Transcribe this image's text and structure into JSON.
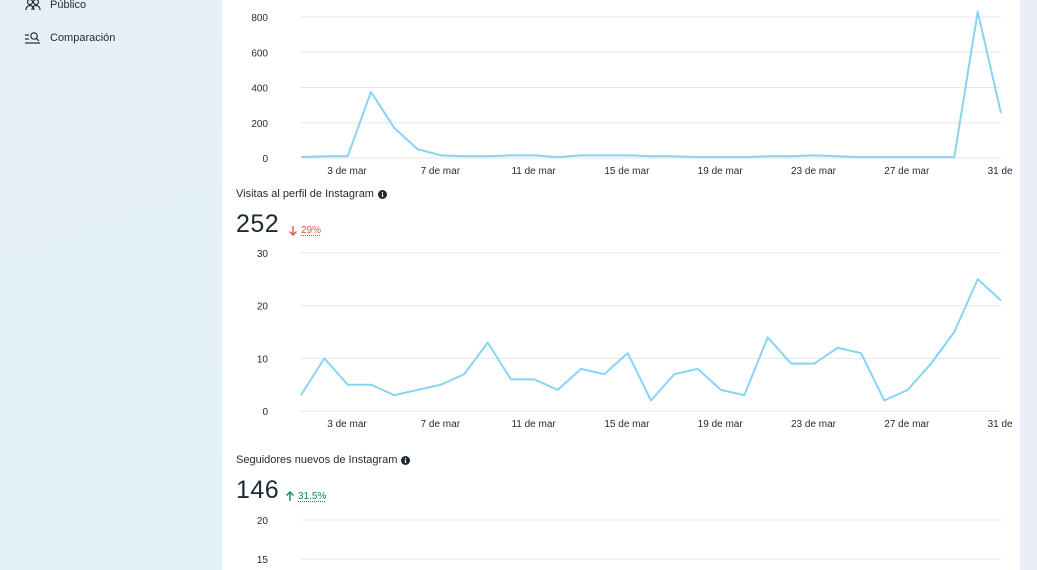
{
  "sidebar": {
    "items": [
      {
        "label": "Público",
        "icon": "people-icon"
      },
      {
        "label": "Comparación",
        "icon": "search-compare-icon"
      }
    ]
  },
  "colors": {
    "line": "#88d4f5",
    "down": "#e0534a",
    "up": "#1a8a4c"
  },
  "sections": [
    {
      "title": "",
      "value": "",
      "delta": ""
    },
    {
      "title": "Visitas al perfil de Instagram",
      "value": "252",
      "delta": "29%",
      "direction": "down"
    },
    {
      "title": "Seguidores nuevos de Instagram",
      "value": "146",
      "delta": "31.5%",
      "direction": "up"
    }
  ],
  "chart_data": [
    {
      "type": "line",
      "x_ticks": [
        "3 de mar",
        "7 de mar",
        "11 de mar",
        "15 de mar",
        "19 de mar",
        "23 de mar",
        "27 de mar",
        "31 de"
      ],
      "y_ticks": [
        "0",
        "200",
        "400",
        "600",
        "800"
      ],
      "ylim": [
        0,
        800
      ],
      "series": [
        {
          "values": [
            5,
            10,
            10,
            375,
            170,
            50,
            15,
            10,
            10,
            15,
            15,
            5,
            15,
            15,
            15,
            10,
            10,
            5,
            5,
            5,
            10,
            10,
            15,
            10,
            5,
            5,
            5,
            5,
            5,
            830,
            255
          ]
        }
      ]
    },
    {
      "type": "line",
      "x_ticks": [
        "3 de mar",
        "7 de mar",
        "11 de mar",
        "15 de mar",
        "19 de mar",
        "23 de mar",
        "27 de mar",
        "31 de"
      ],
      "y_ticks": [
        "0",
        "10",
        "20",
        "30"
      ],
      "ylim": [
        0,
        30
      ],
      "series": [
        {
          "values": [
            3,
            10,
            5,
            5,
            3,
            4,
            5,
            7,
            13,
            6,
            6,
            4,
            8,
            7,
            11,
            2,
            7,
            8,
            4,
            3,
            14,
            9,
            9,
            12,
            11,
            2,
            4,
            9,
            15,
            25,
            21
          ]
        }
      ]
    },
    {
      "type": "line",
      "y_ticks": [
        "15",
        "20"
      ],
      "ylim": [
        15,
        20
      ],
      "series": [
        {
          "values": []
        }
      ]
    }
  ]
}
